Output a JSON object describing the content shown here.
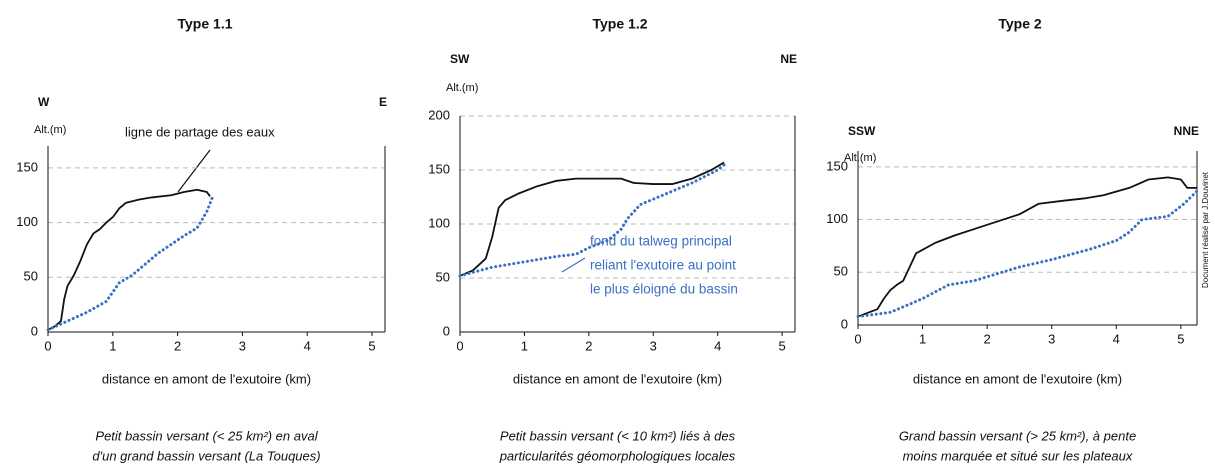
{
  "chart_data": [
    {
      "type": "line",
      "title": "Type 1.1",
      "left_direction": "W",
      "right_direction": "E",
      "y_label": "Alt.(m)",
      "x_label": "distance en amont de l'exutoire (km)",
      "annotation": [
        "ligne de partage des eaux"
      ],
      "caption": [
        "Petit bassin versant (< 25 km²) en aval",
        "d'un grand bassin versant (La Touques)"
      ],
      "xlim": [
        0,
        5.2
      ],
      "xticks": [
        0,
        1,
        2,
        3,
        4,
        5
      ],
      "ylim": [
        0,
        170
      ],
      "yticks": [
        0,
        50,
        100,
        150
      ],
      "grid": true,
      "series": [
        {
          "color": "#111111",
          "style": "solid",
          "x": [
            0,
            0.1,
            0.2,
            0.25,
            0.3,
            0.4,
            0.5,
            0.6,
            0.7,
            0.8,
            0.9,
            1.0,
            1.1,
            1.2,
            1.4,
            1.6,
            1.9,
            2.1,
            2.3,
            2.45,
            2.5
          ],
          "values": [
            2,
            5,
            10,
            30,
            42,
            52,
            65,
            80,
            90,
            94,
            100,
            105,
            113,
            118,
            121,
            123,
            125,
            128,
            130,
            128,
            124
          ]
        },
        {
          "color": "#3a6fc4",
          "style": "dotted",
          "x": [
            0,
            0.3,
            0.6,
            0.9,
            1.1,
            1.3,
            1.5,
            1.7,
            1.9,
            2.1,
            2.3,
            2.45,
            2.55
          ],
          "values": [
            2,
            10,
            18,
            28,
            45,
            52,
            62,
            72,
            80,
            88,
            95,
            110,
            125
          ]
        }
      ]
    },
    {
      "type": "line",
      "title": "Type 1.2",
      "left_direction": "SW",
      "right_direction": "NE",
      "y_label": "Alt.(m)",
      "x_label": "distance en amont de l'exutoire (km)",
      "annotation": [
        "fond du talweg principal",
        "reliant l'exutoire au point",
        "le plus éloigné du bassin"
      ],
      "caption": [
        "Petit bassin versant (< 10 km²) liés à des",
        "particularités géomorphologiques locales"
      ],
      "xlim": [
        0,
        5.2
      ],
      "xticks": [
        0,
        1,
        2,
        3,
        4,
        5
      ],
      "ylim": [
        0,
        200
      ],
      "yticks": [
        0,
        50,
        100,
        150,
        200
      ],
      "grid": true,
      "series": [
        {
          "color": "#111111",
          "style": "solid",
          "x": [
            0,
            0.2,
            0.4,
            0.5,
            0.6,
            0.7,
            0.9,
            1.2,
            1.5,
            1.8,
            2.2,
            2.5,
            2.7,
            3.0,
            3.3,
            3.6,
            3.9,
            4.1
          ],
          "values": [
            52,
            57,
            68,
            88,
            115,
            122,
            128,
            135,
            140,
            142,
            142,
            142,
            138,
            137,
            137,
            142,
            150,
            157
          ]
        },
        {
          "color": "#3a6fc4",
          "style": "dotted",
          "x": [
            0,
            0.5,
            1.0,
            1.5,
            1.8,
            2.0,
            2.3,
            2.5,
            2.6,
            2.8,
            3.2,
            3.6,
            4.0,
            4.15
          ],
          "values": [
            52,
            60,
            65,
            70,
            72,
            78,
            85,
            95,
            105,
            118,
            128,
            138,
            150,
            157
          ]
        }
      ]
    },
    {
      "type": "line",
      "title": "Type 2",
      "left_direction": "SSW",
      "right_direction": "NNE",
      "y_label": "Alt.(m)",
      "x_label": "distance en amont de l'exutoire (km)",
      "annotation": [],
      "caption": [
        "Grand bassin versant (> 25 km²), à pente",
        "moins marquée et situé sur les plateaux"
      ],
      "xlim": [
        0,
        5.25
      ],
      "xticks": [
        0,
        1,
        2,
        3,
        4,
        5
      ],
      "ylim": [
        0,
        165
      ],
      "yticks": [
        0,
        50,
        100,
        150
      ],
      "grid": true,
      "series": [
        {
          "color": "#111111",
          "style": "solid",
          "x": [
            0,
            0.3,
            0.4,
            0.5,
            0.6,
            0.7,
            0.8,
            0.9,
            1.2,
            1.5,
            2.0,
            2.5,
            2.8,
            3.2,
            3.5,
            3.8,
            4.2,
            4.5,
            4.8,
            5.0,
            5.1,
            5.25
          ],
          "values": [
            8,
            15,
            25,
            33,
            38,
            42,
            55,
            68,
            78,
            85,
            95,
            105,
            115,
            118,
            120,
            123,
            130,
            138,
            140,
            138,
            130,
            130
          ]
        },
        {
          "color": "#3a6fc4",
          "style": "dotted",
          "x": [
            0,
            0.5,
            1.0,
            1.4,
            1.8,
            2.5,
            3.0,
            3.6,
            4.0,
            4.2,
            4.4,
            4.8,
            5.05,
            5.25
          ],
          "values": [
            8,
            12,
            25,
            38,
            42,
            55,
            62,
            72,
            80,
            88,
            100,
            103,
            115,
            127
          ]
        }
      ]
    }
  ],
  "credit": "Document réalisé par J.Douvinet"
}
